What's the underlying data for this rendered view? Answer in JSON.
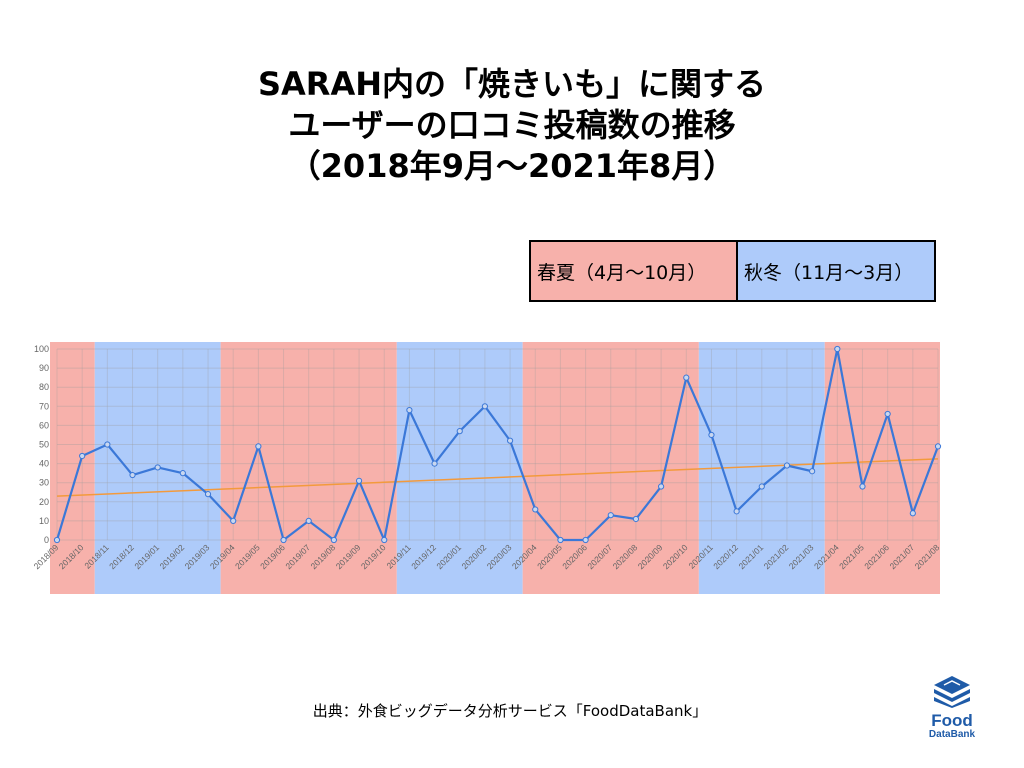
{
  "title": {
    "line1": "SARAH内の「焼きいも」に関する",
    "line2": "ユーザーの口コミ投稿数の推移",
    "line3": "（2018年9月〜2021年8月）"
  },
  "legend": {
    "spring_summer": "春夏（4月〜10月）",
    "autumn_winter": "秋冬（11月〜3月）"
  },
  "source": "出典：外食ビッグデータ分析サービス「FoodDataBank」",
  "logo": {
    "word": "Food",
    "sub": "DataBank"
  },
  "colors": {
    "spring_summer_band": "#f7b1ab",
    "autumn_winter_band": "#aecbfa",
    "line": "#3b78d8",
    "trend": "#f39a3c"
  },
  "chart_data": {
    "type": "line",
    "categories": [
      "2018/09",
      "2018/10",
      "2018/11",
      "2018/12",
      "2019/01",
      "2019/02",
      "2019/03",
      "2019/04",
      "2019/05",
      "2019/06",
      "2019/07",
      "2019/08",
      "2019/09",
      "2019/10",
      "2019/11",
      "2019/12",
      "2020/01",
      "2020/02",
      "2020/03",
      "2020/04",
      "2020/05",
      "2020/06",
      "2020/07",
      "2020/08",
      "2020/09",
      "2020/10",
      "2020/11",
      "2020/12",
      "2021/01",
      "2021/02",
      "2021/03",
      "2021/04",
      "2021/05",
      "2021/06",
      "2021/07",
      "2021/08"
    ],
    "series": [
      {
        "values": [
          0,
          44,
          50,
          34,
          38,
          35,
          24,
          10,
          49,
          0,
          10,
          0,
          31,
          0,
          68,
          40,
          57,
          70,
          52,
          16,
          0,
          0,
          13,
          11,
          28,
          85,
          55,
          15,
          28,
          39,
          36,
          100,
          28,
          66,
          14,
          49
        ]
      }
    ],
    "trendline": {
      "start": 23,
      "end": 42.5
    },
    "seasons": [
      "spring",
      "spring",
      "winter",
      "winter",
      "winter",
      "winter",
      "winter",
      "spring",
      "spring",
      "spring",
      "spring",
      "spring",
      "spring",
      "spring",
      "winter",
      "winter",
      "winter",
      "winter",
      "winter",
      "spring",
      "spring",
      "spring",
      "spring",
      "spring",
      "spring",
      "spring",
      "winter",
      "winter",
      "winter",
      "winter",
      "winter",
      "spring",
      "spring",
      "spring",
      "spring",
      "spring"
    ],
    "ylim": [
      0,
      100
    ],
    "yticks": [
      0,
      10,
      20,
      30,
      40,
      50,
      60,
      70,
      80,
      90,
      100
    ],
    "grid": true,
    "xlabel": "",
    "ylabel": ""
  }
}
